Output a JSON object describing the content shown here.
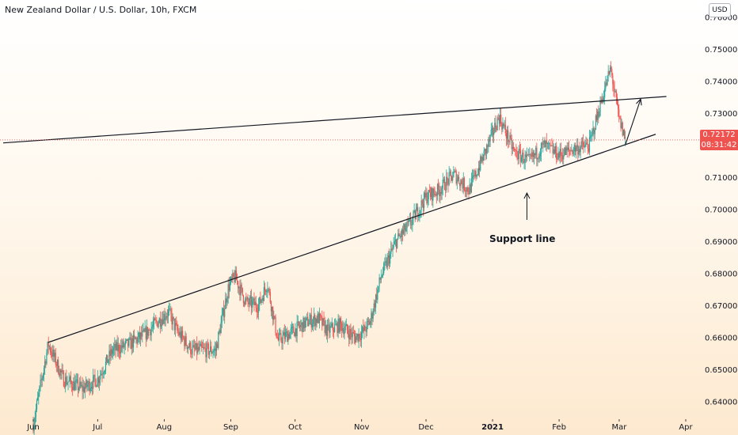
{
  "title": "New Zealand Dollar / U.S. Dollar, 10h, FXCM",
  "currency": "USD",
  "current_price": "0.72172",
  "countdown": "08:31:42",
  "annotation": "Support line",
  "colors": {
    "up": "#26a69a",
    "down": "#ef5350",
    "line": "#131722",
    "background_top": "#ffffff",
    "background_bottom": "#fde9cf"
  },
  "chart_data": {
    "type": "candlestick",
    "title": "New Zealand Dollar / U.S. Dollar, 10h, FXCM",
    "x_ticks": [
      "Jun",
      "Jul",
      "Aug",
      "Sep",
      "Oct",
      "Nov",
      "Dec",
      "2021",
      "Feb",
      "Mar",
      "Apr"
    ],
    "y_ticks": [
      "0.76000",
      "0.75000",
      "0.74000",
      "0.73000",
      "0.72000",
      "0.71000",
      "0.70000",
      "0.69000",
      "0.68000",
      "0.67000",
      "0.66000",
      "0.65000",
      "0.64000"
    ],
    "ylim": [
      0.6325,
      0.7625
    ],
    "price_path": [
      [
        "2020-06-01",
        0.633
      ],
      [
        "2020-06-08",
        0.658
      ],
      [
        "2020-06-15",
        0.647
      ],
      [
        "2020-06-24",
        0.644
      ],
      [
        "2020-07-01",
        0.647
      ],
      [
        "2020-07-08",
        0.656
      ],
      [
        "2020-07-16",
        0.658
      ],
      [
        "2020-07-23",
        0.661
      ],
      [
        "2020-07-29",
        0.665
      ],
      [
        "2020-08-03",
        0.668
      ],
      [
        "2020-08-07",
        0.662
      ],
      [
        "2020-08-14",
        0.656
      ],
      [
        "2020-08-20",
        0.656
      ],
      [
        "2020-08-25",
        0.656
      ],
      [
        "2020-08-31",
        0.676
      ],
      [
        "2020-09-03",
        0.679
      ],
      [
        "2020-09-08",
        0.671
      ],
      [
        "2020-09-14",
        0.67
      ],
      [
        "2020-09-18",
        0.677
      ],
      [
        "2020-09-23",
        0.659
      ],
      [
        "2020-09-30",
        0.662
      ],
      [
        "2020-10-07",
        0.665
      ],
      [
        "2020-10-12",
        0.666
      ],
      [
        "2020-10-16",
        0.662
      ],
      [
        "2020-10-22",
        0.664
      ],
      [
        "2020-10-29",
        0.66
      ],
      [
        "2020-11-02",
        0.662
      ],
      [
        "2020-11-05",
        0.665
      ],
      [
        "2020-11-10",
        0.679
      ],
      [
        "2020-11-17",
        0.69
      ],
      [
        "2020-11-24",
        0.696
      ],
      [
        "2020-12-01",
        0.704
      ],
      [
        "2020-12-07",
        0.706
      ],
      [
        "2020-12-14",
        0.711
      ],
      [
        "2020-12-21",
        0.706
      ],
      [
        "2020-12-28",
        0.717
      ],
      [
        "2021-01-04",
        0.729
      ],
      [
        "2021-01-11",
        0.718
      ],
      [
        "2021-01-18",
        0.715
      ],
      [
        "2021-01-25",
        0.72
      ],
      [
        "2021-02-01",
        0.717
      ],
      [
        "2021-02-08",
        0.719
      ],
      [
        "2021-02-15",
        0.72
      ],
      [
        "2021-02-22",
        0.737
      ],
      [
        "2021-02-25",
        0.744
      ],
      [
        "2021-03-01",
        0.728
      ],
      [
        "2021-03-04",
        0.7217
      ]
    ],
    "resistance_line": [
      [
        "2020-05-18",
        0.7208
      ],
      [
        "2021-03-23",
        0.7353
      ]
    ],
    "support_line": [
      [
        "2020-06-08",
        0.6585
      ],
      [
        "2021-03-18",
        0.7235
      ]
    ],
    "projection_arrow": [
      [
        "2021-03-04",
        0.7205
      ],
      [
        "2021-03-11",
        0.7345
      ]
    ],
    "annotation_arrow_at": "2021-01-17",
    "current_price": 0.72172,
    "grid": false,
    "legend": "none"
  }
}
